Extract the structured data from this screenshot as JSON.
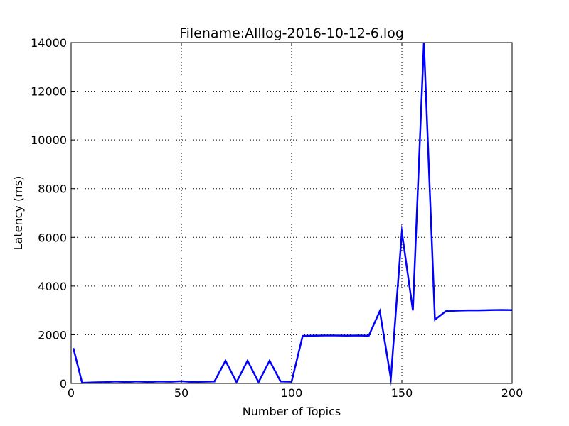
{
  "chart_data": {
    "type": "line",
    "title": "Filename:Alllog-2016-10-12-6.log",
    "xlabel": "Number of Topics",
    "ylabel": "Latency (ms)",
    "xlim": [
      0,
      200
    ],
    "ylim": [
      0,
      14000
    ],
    "xticks": [
      0,
      50,
      100,
      150,
      200
    ],
    "yticks": [
      0,
      2000,
      4000,
      6000,
      8000,
      10000,
      12000,
      14000
    ],
    "grid": true,
    "legend": "none",
    "series": [
      {
        "color": "#0000ff",
        "x": [
          1,
          5,
          10,
          15,
          20,
          25,
          30,
          35,
          40,
          45,
          50,
          55,
          60,
          65,
          70,
          75,
          80,
          85,
          90,
          95,
          100,
          105,
          110,
          115,
          120,
          125,
          130,
          135,
          140,
          145,
          150,
          155,
          160,
          165,
          170,
          175,
          180,
          185,
          190,
          195,
          200
        ],
        "y": [
          1450,
          20,
          40,
          50,
          80,
          60,
          80,
          60,
          80,
          70,
          90,
          60,
          70,
          80,
          930,
          50,
          930,
          50,
          930,
          80,
          70,
          1950,
          1960,
          1970,
          1970,
          1960,
          1970,
          1960,
          2970,
          200,
          6220,
          3000,
          14000,
          2620,
          2970,
          2990,
          3000,
          3000,
          3010,
          3020,
          3010
        ]
      }
    ]
  }
}
